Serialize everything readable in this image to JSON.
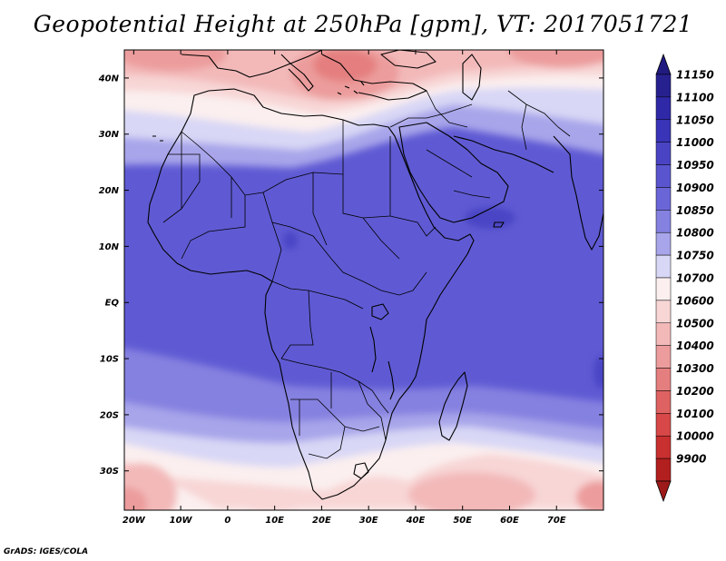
{
  "title": "Geopotential Height at 250hPa [gpm], VT: 2017051721",
  "credit": "GrADS: IGES/COLA",
  "map": {
    "variable": "Geopotential Height",
    "level": "250hPa",
    "units": "gpm",
    "valid_time": "2017051721",
    "lon_range": [
      -22,
      80
    ],
    "lat_range": [
      -37,
      45
    ],
    "lat_ticks": [
      {
        "value": 40,
        "label": "40N"
      },
      {
        "value": 30,
        "label": "30N"
      },
      {
        "value": 20,
        "label": "20N"
      },
      {
        "value": 10,
        "label": "10N"
      },
      {
        "value": 0,
        "label": "EQ"
      },
      {
        "value": -10,
        "label": "10S"
      },
      {
        "value": -20,
        "label": "20S"
      },
      {
        "value": -30,
        "label": "30S"
      }
    ],
    "lon_ticks": [
      {
        "value": -20,
        "label": "20W"
      },
      {
        "value": -10,
        "label": "10W"
      },
      {
        "value": 0,
        "label": "0"
      },
      {
        "value": 10,
        "label": "10E"
      },
      {
        "value": 20,
        "label": "20E"
      },
      {
        "value": 30,
        "label": "30E"
      },
      {
        "value": 40,
        "label": "40E"
      },
      {
        "value": 50,
        "label": "50E"
      },
      {
        "value": 60,
        "label": "60E"
      },
      {
        "value": 70,
        "label": "70E"
      }
    ]
  },
  "colorbar": {
    "levels": [
      {
        "label": "11150",
        "color": "#27218f"
      },
      {
        "label": "11100",
        "color": "#2f29a8"
      },
      {
        "label": "11050",
        "color": "#3a34b8"
      },
      {
        "label": "11000",
        "color": "#4a44c4"
      },
      {
        "label": "10950",
        "color": "#5a55cf"
      },
      {
        "label": "10900",
        "color": "#6b66d8"
      },
      {
        "label": "10850",
        "color": "#8581e0"
      },
      {
        "label": "10800",
        "color": "#a8a5ea"
      },
      {
        "label": "10750",
        "color": "#d8d7f5"
      },
      {
        "label": "10700",
        "color": "#fbefef"
      },
      {
        "label": "10600",
        "color": "#f8d6d6"
      },
      {
        "label": "10500",
        "color": "#f3b9b9"
      },
      {
        "label": "10400",
        "color": "#ec9c9c"
      },
      {
        "label": "10300",
        "color": "#e57f7f"
      },
      {
        "label": "10200",
        "color": "#de6262"
      },
      {
        "label": "10100",
        "color": "#d84848"
      },
      {
        "label": "10000",
        "color": "#c93030"
      },
      {
        "label": "9900",
        "color": "#b21f1f"
      }
    ],
    "top_arrow_color": "#211a80",
    "bottom_arrow_color": "#9e1a1a"
  }
}
